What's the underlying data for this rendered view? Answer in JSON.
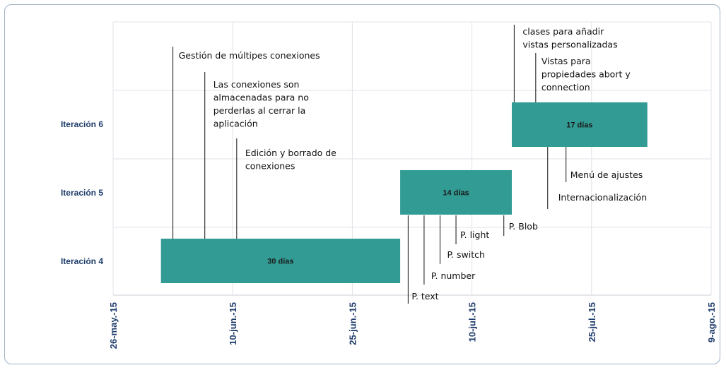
{
  "chart_data": {
    "type": "gantt",
    "title": "",
    "x_ticks": [
      "26-may.-15",
      "10-jun.-15",
      "25-jun.-15",
      "10-jul.-15",
      "25-jul.-15",
      "9-ago.-15"
    ],
    "x_range_days": [
      0,
      75
    ],
    "rows": [
      "Iteración 6",
      "Iteración 5",
      "Iteración 4"
    ],
    "bars": [
      {
        "row": "Iteración 4",
        "start_day": 6,
        "duration_days": 30,
        "label": "30 días"
      },
      {
        "row": "Iteración 5",
        "start_day": 36,
        "duration_days": 14,
        "label": "14 días"
      },
      {
        "row": "Iteración 6",
        "start_day": 50,
        "duration_days": 17,
        "label": "17 días"
      }
    ],
    "milestones": [
      {
        "day": 7.5,
        "lines": [
          "Gestión de múltipes conexiones"
        ]
      },
      {
        "day": 11.5,
        "lines": [
          "Las conexiones son",
          "almacenadas para no",
          "perderlas al cerrar la",
          "aplicación"
        ]
      },
      {
        "day": 15.5,
        "lines": [
          "Edición y borrado de",
          "conexiones"
        ]
      },
      {
        "day": 37,
        "lines": [
          "P. text"
        ]
      },
      {
        "day": 39,
        "lines": [
          "P. number"
        ]
      },
      {
        "day": 41,
        "lines": [
          "P. switch"
        ]
      },
      {
        "day": 43,
        "lines": [
          "P. light"
        ]
      },
      {
        "day": 49,
        "lines": [
          "P. Blob"
        ]
      },
      {
        "day": 50.3,
        "lines": [
          "clases para añadir",
          "vistas personalizadas"
        ]
      },
      {
        "day": 53,
        "lines": [
          "Vistas para",
          "propiedades abort y",
          "connection"
        ]
      },
      {
        "day": 54.5,
        "lines": [
          "Internacionalización"
        ]
      },
      {
        "day": 56.8,
        "lines": [
          "Menú de ajustes"
        ]
      }
    ]
  }
}
